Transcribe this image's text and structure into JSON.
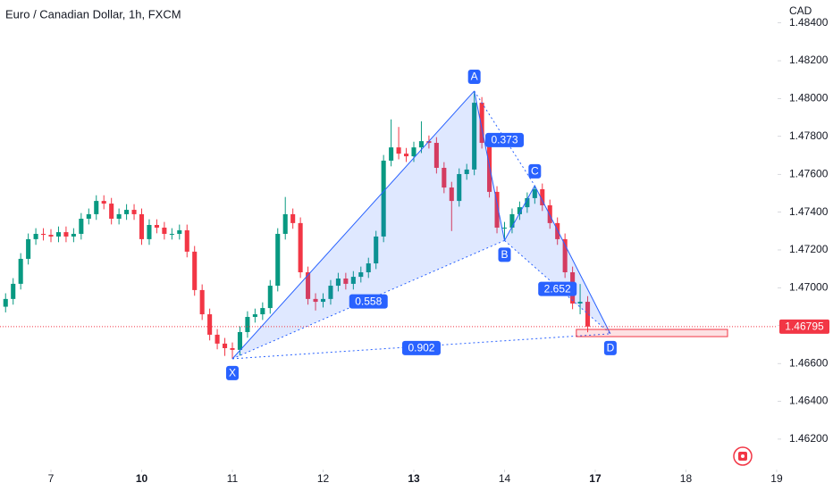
{
  "chart_data": {
    "type": "candlestick",
    "title": "Euro / Canadian Dollar, 1h, FXCM",
    "currency": "CAD",
    "up_color": "#089981",
    "down_color": "#f23645",
    "grid": false,
    "x": [
      -12,
      -10,
      -8,
      -6,
      -4,
      -2,
      0,
      2,
      4,
      6,
      8,
      10,
      12,
      14,
      16,
      18,
      20,
      22,
      24,
      26,
      28,
      30,
      32,
      34,
      36,
      38,
      40,
      42,
      44,
      46,
      48,
      50,
      52,
      54,
      56,
      58,
      60,
      62,
      64,
      66,
      68,
      70,
      72,
      74,
      76,
      78,
      80,
      82,
      84,
      86,
      88,
      90,
      92,
      94,
      96,
      98,
      100,
      102,
      104,
      106,
      108,
      110,
      112,
      114,
      116,
      118,
      120,
      122,
      124,
      126,
      128,
      130,
      132,
      134,
      136,
      138,
      140,
      142
    ],
    "open": [
      1.469,
      1.46941,
      1.47021,
      1.47153,
      1.47257,
      1.47285,
      1.4728,
      1.47271,
      1.47294,
      1.47271,
      1.47285,
      1.47365,
      1.47389,
      1.47459,
      1.47445,
      1.47365,
      1.47389,
      1.47412,
      1.47389,
      1.47257,
      1.47332,
      1.47318,
      1.47285,
      1.47285,
      1.47304,
      1.47191,
      1.46988,
      1.4686,
      1.46752,
      1.46705,
      1.46681,
      1.46672,
      1.46766,
      1.46846,
      1.4686,
      1.46893,
      1.47011,
      1.47285,
      1.47389,
      1.47342,
      1.47082,
      1.46941,
      1.46926,
      1.46941,
      1.47011,
      1.47049,
      1.47021,
      1.47058,
      1.47082,
      1.47129,
      1.47271,
      1.47672,
      1.47742,
      1.47709,
      1.47695,
      1.47742,
      1.47775,
      1.47766,
      1.47634,
      1.4753,
      1.47459,
      1.47601,
      1.47625,
      1.47978,
      1.47766,
      1.47507,
      1.47318,
      1.47318,
      1.47389,
      1.47426,
      1.47474,
      1.47521,
      1.47436,
      1.47342,
      1.47257,
      1.47082,
      1.46917,
      1.46926
    ],
    "high": [
      1.46971,
      1.47051,
      1.47183,
      1.47287,
      1.47315,
      1.47315,
      1.4731,
      1.47324,
      1.47324,
      1.47315,
      1.47395,
      1.47419,
      1.47489,
      1.47489,
      1.47475,
      1.47419,
      1.47442,
      1.47442,
      1.47419,
      1.47362,
      1.47362,
      1.47348,
      1.47315,
      1.47334,
      1.47334,
      1.47221,
      1.47018,
      1.4689,
      1.46782,
      1.46735,
      1.46711,
      1.46796,
      1.46876,
      1.4689,
      1.46923,
      1.47041,
      1.47315,
      1.4748,
      1.47419,
      1.47372,
      1.47112,
      1.46971,
      1.46971,
      1.47041,
      1.47079,
      1.47079,
      1.47088,
      1.47112,
      1.47159,
      1.47301,
      1.47702,
      1.4789,
      1.4785,
      1.47739,
      1.47772,
      1.4788,
      1.47805,
      1.47796,
      1.47664,
      1.4756,
      1.47631,
      1.47655,
      1.4804,
      1.48008,
      1.47796,
      1.47537,
      1.47348,
      1.47419,
      1.47456,
      1.47504,
      1.4754,
      1.47551,
      1.47466,
      1.47372,
      1.47287,
      1.47112,
      1.4702,
      1.46956
    ],
    "low": [
      1.4687,
      1.46911,
      1.46991,
      1.47123,
      1.47227,
      1.4725,
      1.47241,
      1.47241,
      1.47241,
      1.47241,
      1.47255,
      1.47335,
      1.47359,
      1.47415,
      1.47335,
      1.47335,
      1.47359,
      1.47359,
      1.47227,
      1.47227,
      1.47288,
      1.47255,
      1.47255,
      1.47255,
      1.47161,
      1.46958,
      1.4683,
      1.46722,
      1.46675,
      1.4664,
      1.46625,
      1.46642,
      1.46736,
      1.46816,
      1.4683,
      1.46863,
      1.46981,
      1.47255,
      1.47312,
      1.47052,
      1.46911,
      1.4688,
      1.46896,
      1.46911,
      1.46981,
      1.46991,
      1.46991,
      1.47028,
      1.47052,
      1.47099,
      1.47241,
      1.47642,
      1.47679,
      1.47665,
      1.47665,
      1.47712,
      1.47736,
      1.47604,
      1.475,
      1.473,
      1.47429,
      1.47571,
      1.47595,
      1.47736,
      1.47477,
      1.47288,
      1.4725,
      1.47288,
      1.47359,
      1.47396,
      1.47444,
      1.47406,
      1.47312,
      1.47227,
      1.47052,
      1.46887,
      1.4686,
      1.46765
    ],
    "close": [
      1.46941,
      1.47021,
      1.47153,
      1.47257,
      1.47285,
      1.4728,
      1.47271,
      1.47294,
      1.47271,
      1.47285,
      1.47365,
      1.47389,
      1.47459,
      1.47445,
      1.47365,
      1.47389,
      1.47412,
      1.47389,
      1.47257,
      1.47332,
      1.47318,
      1.47285,
      1.47285,
      1.47304,
      1.47191,
      1.46988,
      1.4686,
      1.46752,
      1.46705,
      1.46681,
      1.46672,
      1.46766,
      1.46846,
      1.4686,
      1.46893,
      1.47011,
      1.47285,
      1.47389,
      1.47342,
      1.47082,
      1.46941,
      1.46926,
      1.46941,
      1.47011,
      1.47049,
      1.47021,
      1.47058,
      1.47082,
      1.47129,
      1.47271,
      1.47672,
      1.47742,
      1.47709,
      1.47695,
      1.47742,
      1.47775,
      1.47766,
      1.47634,
      1.4753,
      1.47459,
      1.47601,
      1.47625,
      1.47978,
      1.47766,
      1.47507,
      1.47318,
      1.47318,
      1.47389,
      1.47426,
      1.47474,
      1.47521,
      1.47436,
      1.47342,
      1.47257,
      1.47082,
      1.46917,
      1.46926,
      1.46795
    ],
    "xlim": [
      -13.48,
      192.24
    ],
    "ylim": [
      1.46044,
      1.48521
    ],
    "xticks": [
      {
        "value": 0,
        "label": "7"
      },
      {
        "value": 24,
        "label": "10"
      },
      {
        "value": 48,
        "label": "11"
      },
      {
        "value": 72,
        "label": "12"
      },
      {
        "value": 96,
        "label": "13"
      },
      {
        "value": 120,
        "label": "14"
      },
      {
        "value": 144,
        "label": "17"
      },
      {
        "value": 168,
        "label": "18"
      },
      {
        "value": 192,
        "label": "19"
      }
    ],
    "yticks": [
      {
        "value": 1.484,
        "label": "1.48400"
      },
      {
        "value": 1.482,
        "label": "1.48200"
      },
      {
        "value": 1.48,
        "label": "1.48000"
      },
      {
        "value": 1.478,
        "label": "1.47800"
      },
      {
        "value": 1.476,
        "label": "1.47600"
      },
      {
        "value": 1.474,
        "label": "1.47400"
      },
      {
        "value": 1.472,
        "label": "1.47200"
      },
      {
        "value": 1.47,
        "label": "1.47000"
      },
      {
        "value": 1.468,
        "label": "1.46800"
      },
      {
        "value": 1.466,
        "label": "1.46600"
      },
      {
        "value": 1.464,
        "label": "1.46400"
      },
      {
        "value": 1.462,
        "label": "1.46200"
      }
    ],
    "pattern": {
      "color": "#2962ff",
      "points": [
        {
          "label": "X",
          "x": 48,
          "y": 1.46625
        },
        {
          "label": "A",
          "x": 112,
          "y": 1.4804
        },
        {
          "label": "B",
          "x": 120,
          "y": 1.4725
        },
        {
          "label": "C",
          "x": 128,
          "y": 1.4754
        },
        {
          "label": "D",
          "x": 148,
          "y": 1.46757
        }
      ],
      "ratios": [
        "0.373",
        "0.558",
        "2.652",
        "0.902"
      ]
    },
    "target_zone": {
      "x": [
        139,
        179
      ],
      "y": [
        1.46742,
        1.4678
      ]
    }
  }
}
